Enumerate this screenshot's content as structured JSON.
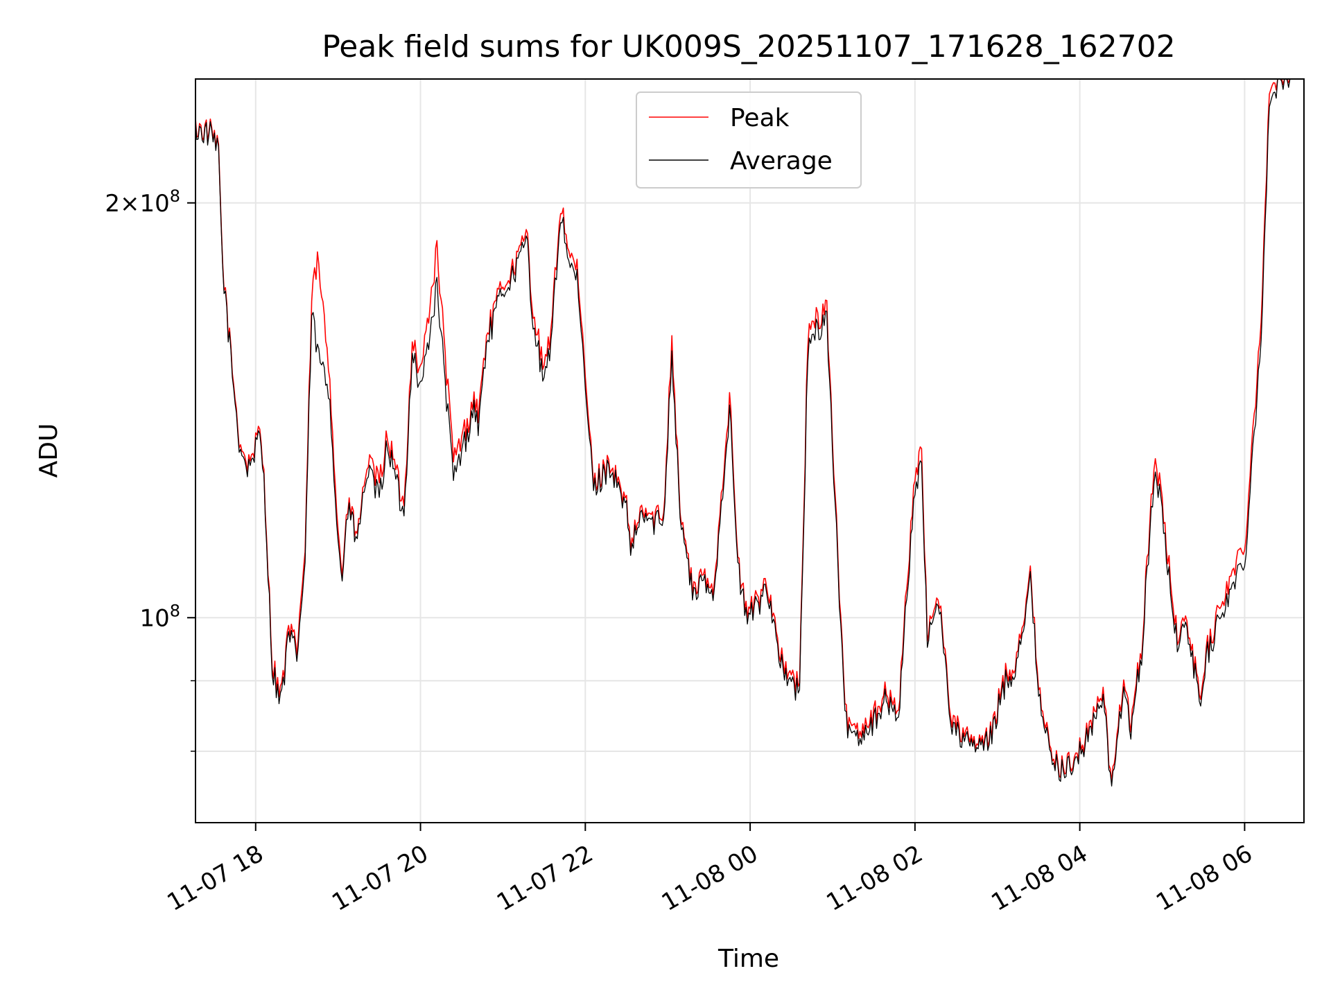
{
  "chart_data": {
    "type": "line",
    "title": "Peak field sums for UK009S_20251107_171628_162702",
    "xlabel": "Time",
    "ylabel": "ADU",
    "yscale": "log",
    "ylim": [
      71000000,
      246000000
    ],
    "xlim_hours": [
      -0.73,
      12.72
    ],
    "xlim_note": "hours relative to 11-07 18:00",
    "grid": true,
    "legend_position": "upper center",
    "x_ticks": [
      {
        "label": "11-07 18",
        "hours": 0
      },
      {
        "label": "11-07 20",
        "hours": 2
      },
      {
        "label": "11-07 22",
        "hours": 4
      },
      {
        "label": "11-08 00",
        "hours": 6
      },
      {
        "label": "11-08 02",
        "hours": 8
      },
      {
        "label": "11-08 04",
        "hours": 10
      },
      {
        "label": "11-08 06",
        "hours": 12
      }
    ],
    "y_major_ticks": [
      {
        "value": 200000000,
        "mantissa": "2",
        "exponent": "8",
        "times": "×"
      },
      {
        "value": 100000000,
        "mantissa": "",
        "exponent": "8",
        "times": ""
      }
    ],
    "y_minor_ticks": [
      90000000,
      80000000
    ],
    "series": [
      {
        "name": "Peak",
        "color": "#ff0000",
        "hours": [
          -0.73,
          -0.55,
          -0.45,
          -0.4,
          -0.3,
          -0.2,
          -0.1,
          0.05,
          0.1,
          0.2,
          0.3,
          0.35,
          0.4,
          0.5,
          0.55,
          0.6,
          0.68,
          0.75,
          0.9,
          1.0,
          1.05,
          1.1,
          1.17,
          1.2,
          1.25,
          1.3,
          1.35,
          1.5,
          1.6,
          1.8,
          1.9,
          2.0,
          2.2,
          2.4,
          2.6,
          2.65,
          2.7,
          2.8,
          3.0,
          3.1,
          3.3,
          3.35,
          3.5,
          3.6,
          3.7,
          3.8,
          3.9,
          4.0,
          4.1,
          4.3,
          4.5,
          4.55,
          4.7,
          4.8,
          4.95,
          5.05,
          5.15,
          5.3,
          5.45,
          5.55,
          5.75,
          5.85,
          5.95,
          6.1,
          6.2,
          6.4,
          6.6,
          6.7,
          6.82,
          6.93,
          7.15,
          7.3,
          7.5,
          7.62,
          7.8,
          8.0,
          8.08,
          8.15,
          8.28,
          8.45,
          8.7,
          8.9,
          9.1,
          9.2,
          9.4,
          9.5,
          9.65,
          9.8,
          10.0,
          10.2,
          10.3,
          10.37,
          10.5,
          10.55,
          10.62,
          10.75,
          10.9,
          11.0,
          11.1,
          11.2,
          11.3,
          11.45,
          11.55,
          11.75,
          12.0,
          12.2,
          12.3,
          12.45,
          12.55
        ],
        "values": [
          227000000,
          225000000,
          218000000,
          180000000,
          155000000,
          135000000,
          129000000,
          136000000,
          128000000,
          93000000,
          88000000,
          92000000,
          98000000,
          95000000,
          103000000,
          112000000,
          170000000,
          182000000,
          150000000,
          115000000,
          108000000,
          118000000,
          121000000,
          114000000,
          117000000,
          122000000,
          130000000,
          125000000,
          136000000,
          120000000,
          160000000,
          150000000,
          185000000,
          130000000,
          140000000,
          145000000,
          140000000,
          160000000,
          175000000,
          178000000,
          190000000,
          170000000,
          150000000,
          165000000,
          200000000,
          185000000,
          178000000,
          150000000,
          125000000,
          130000000,
          120000000,
          113000000,
          120000000,
          118000000,
          119000000,
          160000000,
          120000000,
          105000000,
          107000000,
          104000000,
          145000000,
          110000000,
          101000000,
          103000000,
          107000000,
          92000000,
          89000000,
          160000000,
          165000000,
          168000000,
          85000000,
          83000000,
          85000000,
          88000000,
          86000000,
          128000000,
          131000000,
          97000000,
          105000000,
          84000000,
          81000000,
          81500000,
          91000000,
          92000000,
          107000000,
          90000000,
          79000000,
          78000000,
          80000000,
          86000000,
          88000000,
          76000000,
          86000000,
          90000000,
          84000000,
          95000000,
          130000000,
          122000000,
          106000000,
          96000000,
          100000000,
          88000000,
          95000000,
          104000000,
          113000000,
          165000000,
          240000000,
          249000000,
          249000000
        ]
      },
      {
        "name": "Average",
        "color": "#000000",
        "hours": [
          -0.73,
          -0.55,
          -0.45,
          -0.4,
          -0.3,
          -0.2,
          -0.1,
          0.05,
          0.1,
          0.2,
          0.3,
          0.35,
          0.4,
          0.5,
          0.55,
          0.6,
          0.68,
          0.75,
          0.9,
          1.0,
          1.05,
          1.1,
          1.17,
          1.2,
          1.25,
          1.3,
          1.35,
          1.5,
          1.6,
          1.8,
          1.9,
          2.0,
          2.2,
          2.4,
          2.6,
          2.65,
          2.7,
          2.8,
          3.0,
          3.1,
          3.3,
          3.35,
          3.5,
          3.6,
          3.7,
          3.8,
          3.9,
          4.0,
          4.1,
          4.3,
          4.5,
          4.55,
          4.7,
          4.8,
          4.95,
          5.05,
          5.15,
          5.3,
          5.45,
          5.55,
          5.75,
          5.85,
          5.95,
          6.1,
          6.2,
          6.4,
          6.6,
          6.7,
          6.82,
          6.93,
          7.15,
          7.3,
          7.5,
          7.62,
          7.8,
          8.0,
          8.08,
          8.15,
          8.28,
          8.45,
          8.7,
          8.9,
          9.1,
          9.2,
          9.4,
          9.5,
          9.65,
          9.8,
          10.0,
          10.2,
          10.3,
          10.37,
          10.5,
          10.55,
          10.62,
          10.75,
          10.9,
          11.0,
          11.1,
          11.2,
          11.3,
          11.45,
          11.55,
          11.75,
          12.0,
          12.2,
          12.3,
          12.45,
          12.55
        ],
        "values": [
          226000000,
          224000000,
          217000000,
          179000000,
          154000000,
          134000000,
          128000000,
          135000000,
          127000000,
          92000000,
          87000000,
          91000000,
          97000000,
          94000000,
          101000000,
          110000000,
          166000000,
          156000000,
          145000000,
          113000000,
          107000000,
          117000000,
          120000000,
          113000000,
          116000000,
          121000000,
          128000000,
          122000000,
          134000000,
          118000000,
          157000000,
          146000000,
          174000000,
          126000000,
          138000000,
          143000000,
          137000000,
          158000000,
          173000000,
          176000000,
          188000000,
          167000000,
          147000000,
          162000000,
          197000000,
          182000000,
          175000000,
          147000000,
          124000000,
          129000000,
          119000000,
          112000000,
          119000000,
          117000000,
          118000000,
          156000000,
          119000000,
          104000000,
          106000000,
          103000000,
          142000000,
          109000000,
          100000000,
          102000000,
          106000000,
          91000000,
          88000000,
          156000000,
          162000000,
          165000000,
          84000000,
          82000000,
          84000000,
          87000000,
          85000000,
          125000000,
          128000000,
          96000000,
          104000000,
          83000000,
          80500000,
          81000000,
          90000000,
          91000000,
          106000000,
          89000000,
          78500000,
          77500000,
          79500000,
          85000000,
          87000000,
          75500000,
          85000000,
          89000000,
          83000000,
          94000000,
          127000000,
          120000000,
          104000000,
          95000000,
          99000000,
          87000000,
          94000000,
          102000000,
          110000000,
          160000000,
          235000000,
          247000000,
          247000000
        ]
      }
    ]
  }
}
